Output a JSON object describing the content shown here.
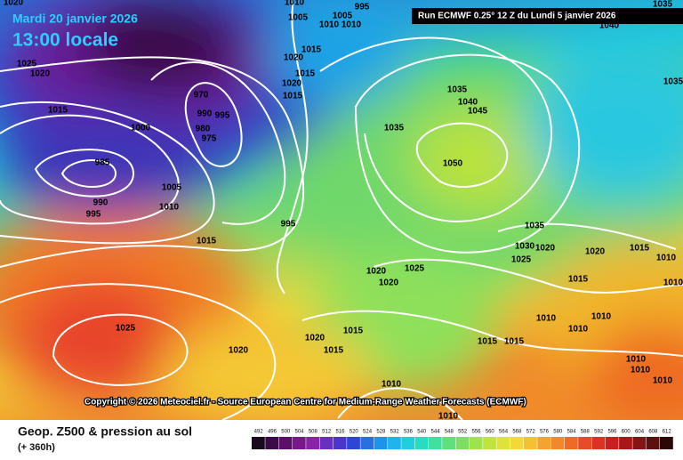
{
  "header": {
    "date": "Mardi 20 janvier 2026",
    "time": "13:00 locale",
    "run": "Run ECMWF 0.25° 12 Z du Lundi 5 janvier 2026"
  },
  "copyright": "Copyright © 2026 Meteociel.fr - Source European Centre for Medium-Range Weather Forecasts (ECMWF)",
  "footer": {
    "title": "Geop. Z500 & pression au sol",
    "lead": "(+ 360h)"
  },
  "scale": [
    492,
    496,
    500,
    504,
    508,
    512,
    516,
    520,
    524,
    528,
    532,
    536,
    540,
    544,
    548,
    552,
    556,
    560,
    564,
    568,
    572,
    576,
    580,
    584,
    588,
    592,
    596,
    600,
    604,
    608,
    612
  ],
  "isobar_labels": [
    "1020",
    "1025",
    "1020",
    "1015",
    "1000",
    "985",
    "990",
    "995",
    "1005",
    "1010",
    "1015",
    "970",
    "990",
    "995",
    "975",
    "980",
    "995",
    "1010",
    "1005",
    "1005",
    "995",
    "1010",
    "1010",
    "1015",
    "1020",
    "1015",
    "1020",
    "1015",
    "1035",
    "1040",
    "1045",
    "1035",
    "1050",
    "1035",
    "1030",
    "1020",
    "1025",
    "1020",
    "1015",
    "1010",
    "1020",
    "1025",
    "1020",
    "1015",
    "1010",
    "1010",
    "1010",
    "1010",
    "1015",
    "1015",
    "1015",
    "1020",
    "1015",
    "1025",
    "1020",
    "1010",
    "1010",
    "1010",
    "1010",
    "1010",
    "1035",
    "1040",
    "1035"
  ]
}
